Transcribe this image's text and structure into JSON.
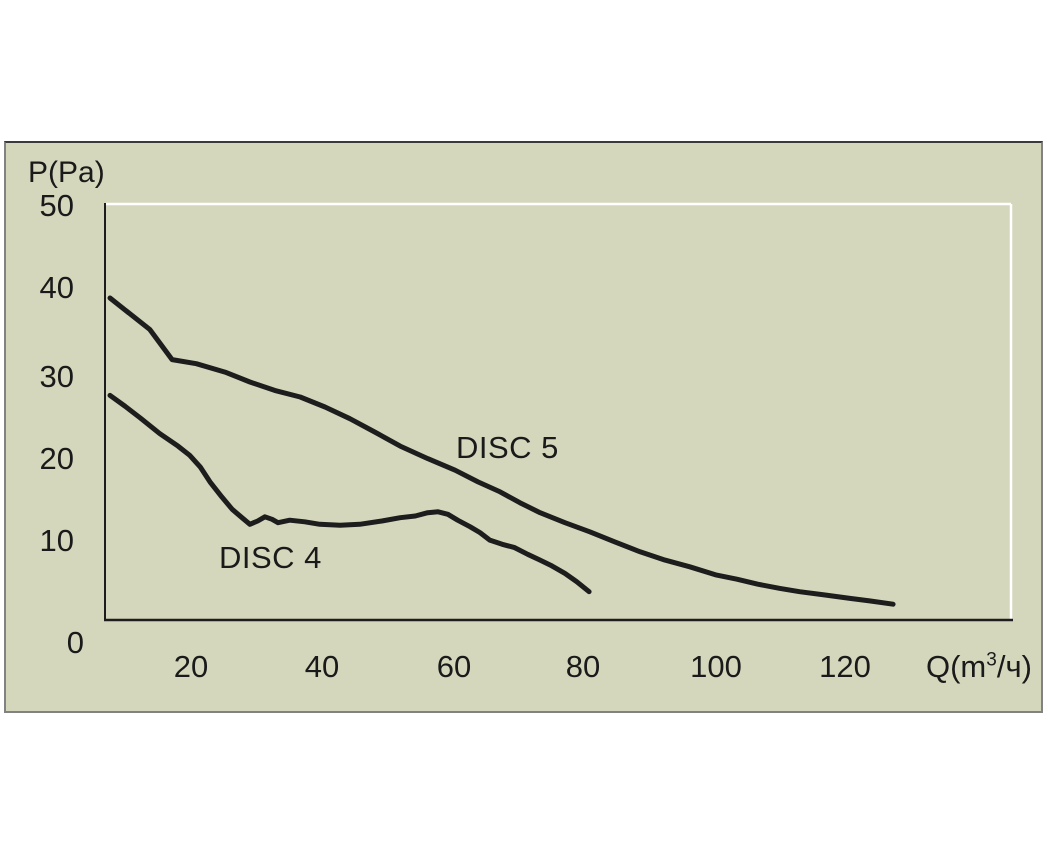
{
  "chart_data": {
    "type": "line",
    "title": "",
    "xlabel": "Q(m³/ч)",
    "ylabel": "P(Pa)",
    "x_ticks": [
      "20",
      "40",
      "60",
      "80",
      "100",
      "120"
    ],
    "y_ticks": [
      "0",
      "10",
      "20",
      "30",
      "40",
      "50"
    ],
    "xlim": [
      7,
      145
    ],
    "ylim": [
      0,
      50
    ],
    "grid": false,
    "legend_position": "inline-curve-labels",
    "series": [
      {
        "name": "DISC 5",
        "points": [
          [
            7.6,
            38.7
          ],
          [
            13.7,
            34.9
          ],
          [
            17.1,
            31.3
          ],
          [
            20.8,
            30.8
          ],
          [
            25.2,
            29.8
          ],
          [
            29.0,
            28.6
          ],
          [
            32.8,
            27.6
          ],
          [
            36.7,
            26.8
          ],
          [
            40.5,
            25.6
          ],
          [
            44.3,
            24.2
          ],
          [
            48.1,
            22.6
          ],
          [
            52.0,
            20.9
          ],
          [
            56.2,
            19.4
          ],
          [
            60.4,
            18.0
          ],
          [
            63.9,
            16.6
          ],
          [
            67.3,
            15.4
          ],
          [
            70.3,
            14.1
          ],
          [
            73.4,
            12.9
          ],
          [
            77.2,
            11.7
          ],
          [
            81.0,
            10.6
          ],
          [
            84.8,
            9.4
          ],
          [
            88.7,
            8.2
          ],
          [
            92.5,
            7.2
          ],
          [
            96.3,
            6.4
          ],
          [
            100.4,
            5.4
          ],
          [
            103.5,
            4.9
          ],
          [
            106.7,
            4.3
          ],
          [
            110.1,
            3.8
          ],
          [
            113.1,
            3.4
          ],
          [
            117.0,
            3.0
          ],
          [
            120.8,
            2.6
          ],
          [
            123.8,
            2.3
          ],
          [
            127.4,
            1.9
          ]
        ]
      },
      {
        "name": "DISC 4",
        "points": [
          [
            7.6,
            27.0
          ],
          [
            9.9,
            25.7
          ],
          [
            12.2,
            24.3
          ],
          [
            15.2,
            22.4
          ],
          [
            18.0,
            20.9
          ],
          [
            19.8,
            19.8
          ],
          [
            21.4,
            18.4
          ],
          [
            22.9,
            16.6
          ],
          [
            24.7,
            14.8
          ],
          [
            26.3,
            13.3
          ],
          [
            27.8,
            12.3
          ],
          [
            29.0,
            11.5
          ],
          [
            30.2,
            11.9
          ],
          [
            31.3,
            12.4
          ],
          [
            32.4,
            12.1
          ],
          [
            33.3,
            11.7
          ],
          [
            35.1,
            12.0
          ],
          [
            37.4,
            11.8
          ],
          [
            39.7,
            11.5
          ],
          [
            42.8,
            11.4
          ],
          [
            45.8,
            11.5
          ],
          [
            49.2,
            11.9
          ],
          [
            52.0,
            12.3
          ],
          [
            54.3,
            12.5
          ],
          [
            56.2,
            12.9
          ],
          [
            57.8,
            13.0
          ],
          [
            59.3,
            12.7
          ],
          [
            60.8,
            12.0
          ],
          [
            62.7,
            11.2
          ],
          [
            64.2,
            10.5
          ],
          [
            65.7,
            9.6
          ],
          [
            67.6,
            9.1
          ],
          [
            69.5,
            8.7
          ],
          [
            71.5,
            7.9
          ],
          [
            73.4,
            7.2
          ],
          [
            75.2,
            6.5
          ],
          [
            77.2,
            5.6
          ],
          [
            79.0,
            4.6
          ],
          [
            80.9,
            3.4
          ]
        ]
      }
    ]
  },
  "labels": {
    "xlabel_pre": "Q(m",
    "xlabel_sup": "3",
    "xlabel_post": "/ч)"
  },
  "colors": {
    "panel_bg": "#d4d7bc",
    "panel_border": "#828282",
    "panel_border_top": "#3a3a3a",
    "curve": "#1d1d1d",
    "axis": "#1d1d1d",
    "plot_border": "#ffffff",
    "text": "#1a1a1a"
  }
}
